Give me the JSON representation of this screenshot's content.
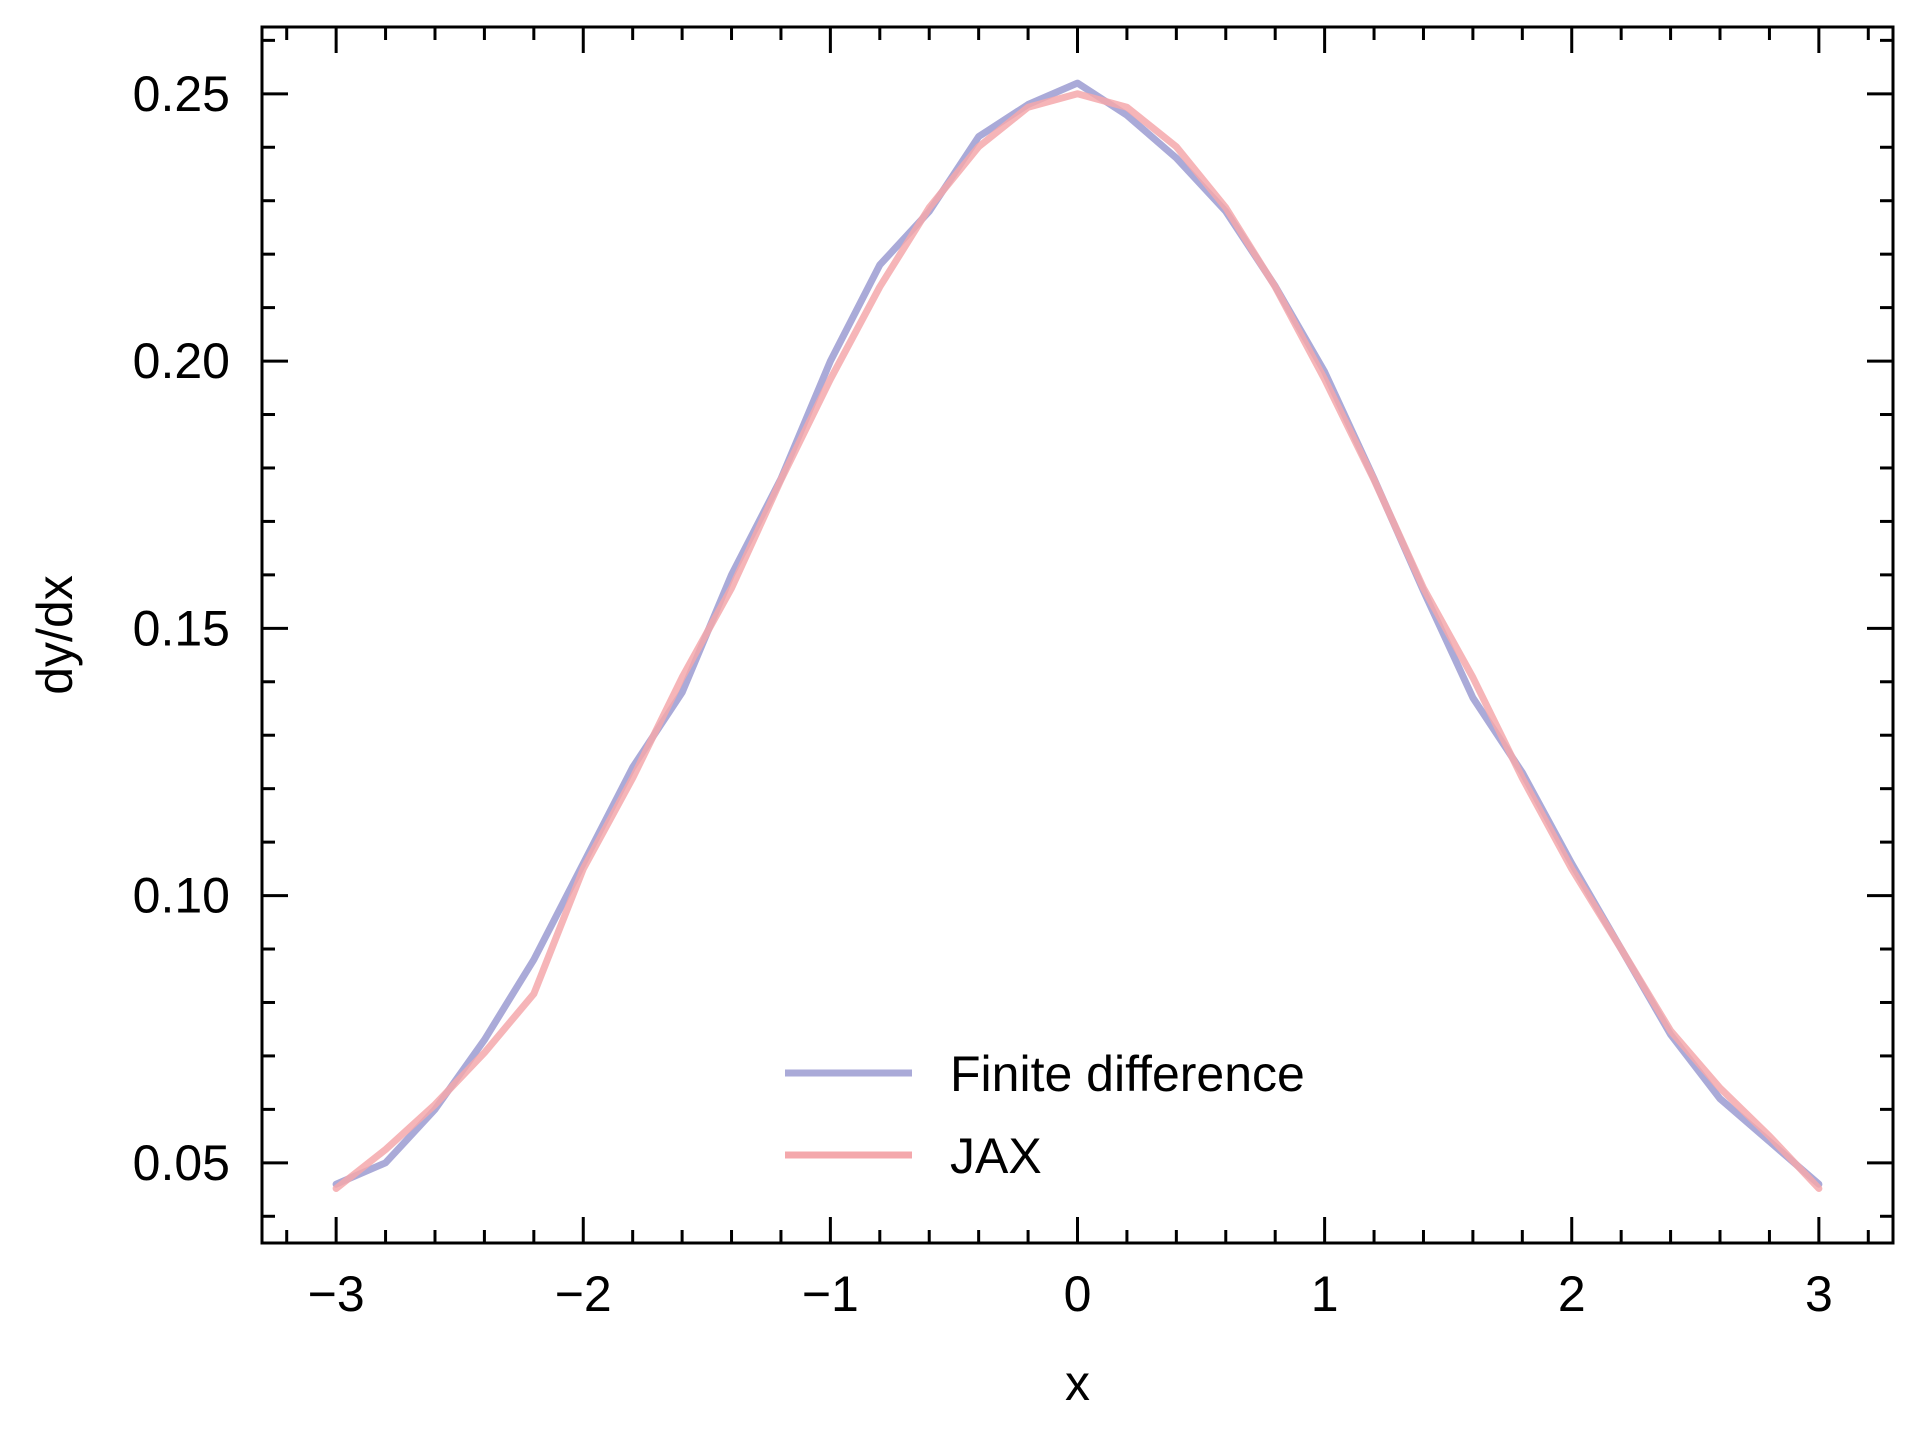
{
  "chart_data": {
    "type": "line",
    "xlabel": "x",
    "ylabel": "dy/dx",
    "xlim": [
      -3.3,
      3.3
    ],
    "ylim": [
      0.035,
      0.2625
    ],
    "x_ticks": [
      -3,
      -2,
      -1,
      0,
      1,
      2,
      3
    ],
    "x_tick_labels": [
      "−3",
      "−2",
      "−1",
      "0",
      "1",
      "2",
      "3"
    ],
    "y_ticks": [
      0.05,
      0.1,
      0.15,
      0.2,
      0.25
    ],
    "y_tick_labels": [
      "0.05",
      "0.10",
      "0.15",
      "0.20",
      "0.25"
    ],
    "grid": false,
    "legend_position": "bottom-center",
    "x": [
      -3.0,
      -2.8,
      -2.6,
      -2.4,
      -2.2,
      -2.0,
      -1.8,
      -1.6,
      -1.4,
      -1.2,
      -1.0,
      -0.8,
      -0.6,
      -0.4,
      -0.2,
      0.0,
      0.2,
      0.4,
      0.6,
      0.8,
      1.0,
      1.2,
      1.4,
      1.6,
      1.8,
      2.0,
      2.2,
      2.4,
      2.6,
      2.8,
      3.0
    ],
    "series": [
      {
        "name": "Finite difference",
        "color": "#aaaad8",
        "values": [
          0.046,
          0.05,
          0.06,
          0.073,
          0.088,
          0.106,
          0.124,
          0.138,
          0.16,
          0.178,
          0.2,
          0.218,
          0.228,
          0.242,
          0.248,
          0.252,
          0.246,
          0.238,
          0.228,
          0.214,
          0.198,
          0.178,
          0.157,
          0.137,
          0.123,
          0.106,
          0.09,
          0.074,
          0.062,
          0.054,
          0.046
        ]
      },
      {
        "name": "JAX",
        "color": "#f4a8ac",
        "values": [
          0.0452,
          0.0525,
          0.0609,
          0.0706,
          0.0816,
          0.105,
          0.122,
          0.1408,
          0.1575,
          0.1778,
          0.1966,
          0.2139,
          0.2287,
          0.2401,
          0.2475,
          0.25,
          0.2475,
          0.2401,
          0.2287,
          0.2139,
          0.1966,
          0.1778,
          0.1575,
          0.1408,
          0.122,
          0.105,
          0.09,
          0.0747,
          0.064,
          0.055,
          0.0452
        ]
      }
    ]
  }
}
